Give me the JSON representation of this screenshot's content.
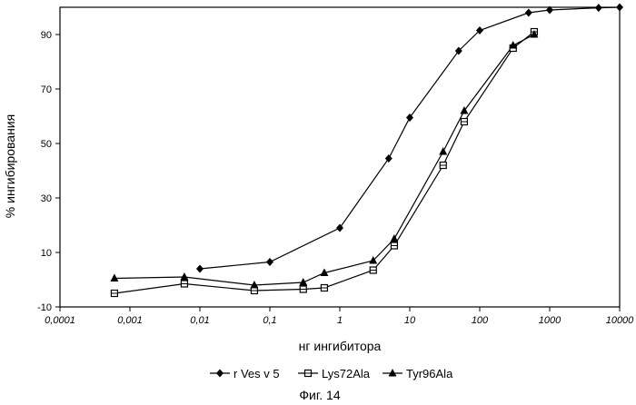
{
  "chart_data": {
    "type": "scatter",
    "xlabel": "нг ингибитора",
    "ylabel": "% ингибирования",
    "x_scale": "log",
    "xlim": [
      0.0001,
      10000
    ],
    "ylim": [
      -10,
      100
    ],
    "x_tick_labels": [
      "0,0001",
      "0,001",
      "0,01",
      "0,1",
      "1",
      "10",
      "100",
      "1000",
      "10000"
    ],
    "y_tick_labels": [
      "-10",
      "10",
      "30",
      "50",
      "70",
      "90"
    ],
    "grid": false,
    "legend_position": "bottom",
    "series": [
      {
        "name": "r Ves v 5",
        "marker": "diamond",
        "x": [
          0.01,
          0.1,
          1,
          5,
          10,
          50,
          100,
          500,
          1000,
          5000,
          10000
        ],
        "y": [
          4,
          6.5,
          19,
          44.5,
          59.5,
          84,
          91.5,
          98,
          99,
          99.8,
          100
        ]
      },
      {
        "name": "Lys72Ala",
        "marker": "square",
        "x": [
          0.0006,
          0.006,
          0.06,
          0.3,
          0.6,
          3,
          6,
          30,
          60,
          300,
          600
        ],
        "y": [
          -5,
          -1.5,
          -4,
          -3.5,
          -3,
          3.5,
          12.5,
          42,
          58,
          85,
          91
        ]
      },
      {
        "name": "Tyr96Ala",
        "marker": "triangle",
        "x": [
          0.0006,
          0.006,
          0.06,
          0.3,
          0.6,
          3,
          6,
          30,
          60,
          300,
          600
        ],
        "y": [
          0.5,
          1,
          -2,
          -1,
          2.5,
          7,
          15,
          47,
          62,
          86,
          90
        ]
      }
    ],
    "caption": "Фиг. 14"
  }
}
